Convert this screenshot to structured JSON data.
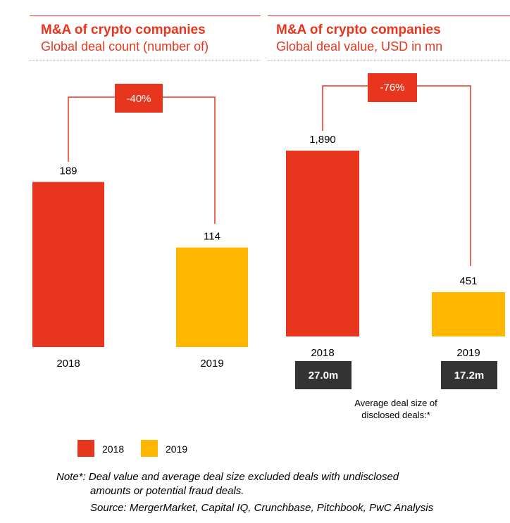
{
  "colors": {
    "accent": "#e8361e",
    "bar_2018": "#e8361e",
    "bar_2019": "#ffb700",
    "dark_box": "#333333"
  },
  "chart_data": [
    {
      "type": "bar",
      "title": "M&A of crypto companies",
      "subtitle": "Global deal count (number of)",
      "categories": [
        "2018",
        "2019"
      ],
      "values": [
        189,
        114
      ],
      "value_labels": [
        "189",
        "114"
      ],
      "change_label": "-40%",
      "ylim": [
        0,
        270
      ]
    },
    {
      "type": "bar",
      "title": "M&A of crypto companies",
      "subtitle": "Global deal value, USD in mn",
      "categories": [
        "2018",
        "2019"
      ],
      "values": [
        1890,
        451
      ],
      "value_labels": [
        "1,890",
        "451"
      ],
      "change_label": "-76%",
      "ylim": [
        0,
        2620
      ],
      "avg_deal_sizes": [
        "27.0m",
        "17.2m"
      ],
      "avg_deal_label": [
        "Average deal size of",
        "disclosed deals:*"
      ]
    }
  ],
  "legend": [
    {
      "label": "2018",
      "color": "#e8361e"
    },
    {
      "label": "2019",
      "color": "#ffb700"
    }
  ],
  "note": {
    "line1": "Note*: Deal value and average deal size excluded deals with undisclosed",
    "line2": "amounts or potential fraud deals.",
    "source": "Source: MergerMarket, Capital IQ, Crunchbase, Pitchbook, PwC Analysis"
  }
}
